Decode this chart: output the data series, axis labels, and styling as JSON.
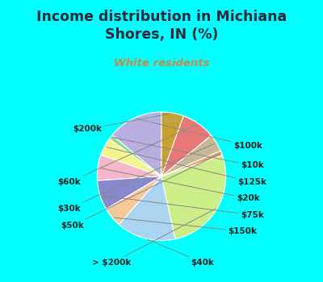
{
  "title": "Income distribution in Michiana\nShores, IN (%)",
  "subtitle": "White residents",
  "background_color": "#00ffff",
  "chart_bg_color": "#dff0e8",
  "title_color": "#2a2a3a",
  "subtitle_color": "#cc8844",
  "labels": [
    "$100k",
    "$10k",
    "$125k",
    "$20k",
    "$75k",
    "$150k",
    "$40k",
    "> $200k",
    "$50k",
    "$30k",
    "$60k",
    "$200k"
  ],
  "values": [
    14.0,
    1.2,
    4.5,
    6.5,
    7.5,
    5.0,
    15.0,
    27.0,
    1.2,
    4.5,
    8.5,
    5.6
  ],
  "colors": [
    "#b8aee0",
    "#8edd8e",
    "#f5f590",
    "#f5b8c8",
    "#8888cc",
    "#f5c89a",
    "#aad4f0",
    "#ccee88",
    "#e0a060",
    "#c8b898",
    "#e87878",
    "#c8a030"
  ],
  "startangle": 90,
  "label_fontsize": 7.5,
  "title_fontsize": 12.5,
  "subtitle_fontsize": 9.5
}
